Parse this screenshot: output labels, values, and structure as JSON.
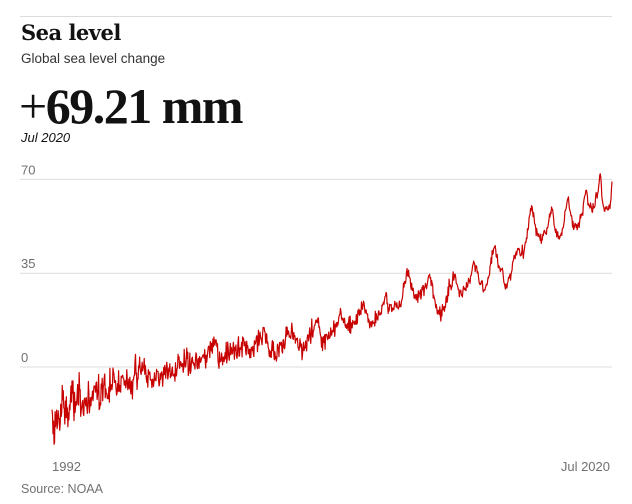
{
  "header": {
    "title": "Sea level",
    "subtitle": "Global sea level change",
    "headline_prefix": "+",
    "headline_value": "69.21 mm",
    "headline_date": "Jul 2020"
  },
  "footer": {
    "source": "Source: NOAA"
  },
  "colors": {
    "line": "#c70000",
    "grid": "#dcdcdc",
    "text": "#121212",
    "muted": "#707070"
  },
  "chart_data": {
    "type": "line",
    "x_start": 1992.85,
    "x_end": 2020.54,
    "x_step_years": 0.03,
    "x_tick_labels": [
      "1992",
      "Jul 2020"
    ],
    "y_ticks": [
      0,
      35,
      70
    ],
    "ylim": [
      -30,
      72
    ],
    "grid": "horizontal",
    "series": [
      {
        "values": [
          -15.9,
          -17.9,
          -24.9,
          -20.2,
          -28.8,
          -28.1,
          -16.7,
          -22.2,
          -19.6,
          -16.1,
          -23.0,
          -21.1,
          -16.3,
          -19.1,
          -19.2,
          -23.6,
          -21.4,
          -13.9,
          -18.5,
          -16.8,
          -6.9,
          -12.3,
          -8.8,
          -15.3,
          -15.5,
          -21.3,
          -12.7,
          -18.9,
          -11.1,
          -18.9,
          -15.3,
          -22.3,
          -17.1,
          -19.7,
          -14.2,
          -16.0,
          -11.7,
          -7.1,
          -13.1,
          -5.2,
          -9.8,
          -5.2,
          -14.8,
          -20.0,
          -9.4,
          -17.0,
          -14.8,
          -12.9,
          -14.2,
          -10.5,
          -6.5,
          -13.6,
          -14.2,
          -2.1,
          -8.5,
          -8.4,
          -18.4,
          -16.3,
          -15.1,
          -13.3,
          -12.5,
          -17.3,
          -18.1,
          -11.9,
          -11.6,
          -13.2,
          -14.5,
          -11.4,
          -14.7,
          -17.3,
          -13.9,
          -5.4,
          -10.1,
          -17.1,
          -14.4,
          -11.5,
          -14.5,
          -11.3,
          -11.9,
          -9.0,
          -12.6,
          -9.6,
          -7.1,
          -7.4,
          -7.1,
          -9.4,
          -6.0,
          -5.6,
          -12.1,
          -10.4,
          -8.5,
          -2.8,
          -15.9,
          -15.5,
          -13.4,
          -14.2,
          -6.4,
          -8.0,
          -4.2,
          -12.6,
          -7.5,
          -6.7,
          -3.9,
          -2.6,
          -11.5,
          -8.1,
          -9.7,
          -9.9,
          -11.8,
          -10.8,
          -11.8,
          -7.5,
          -13.1,
          -0.5,
          -9.0,
          -7.3,
          -6.6,
          -8.4,
          -6.7,
          -0.4,
          -1.8,
          -2.7,
          -5.8,
          -5.4,
          -5.1,
          -8.2,
          -10.5,
          -9.8,
          -6.2,
          -9.0,
          -1.4,
          -9.2,
          -6.8,
          -7.8,
          -9.4,
          -3.6,
          -3.9,
          -3.2,
          -3.1,
          -4.2,
          -4.3,
          -6.8,
          -6.3,
          -5.1,
          -7.8,
          -6.4,
          -1.0,
          -5.2,
          -8.5,
          -6.9,
          -4.5,
          -8.0,
          -3.8,
          -8.5,
          -10.1,
          -5.3,
          -6.2,
          -11.9,
          -4.7,
          -4.9,
          -3.3,
          -3.2,
          2.0,
          4.7,
          -2.7,
          -2.2,
          -8.4,
          -4.2,
          -4.5,
          0.4,
          -0.2,
          3.7,
          -0.6,
          -2.0,
          -2.8,
          -0.5,
          1.8,
          -1.5,
          -0.2,
          0.2,
          3.2,
          -2.7,
          0.6,
          -1.3,
          -4.1,
          -5.8,
          -3.3,
          -7.5,
          -1.0,
          -1.9,
          -2.7,
          -1.9,
          -4.9,
          -4.7,
          -4.9,
          -7.7,
          -4.5,
          -5.0,
          -7.3,
          -5.4,
          -2.2,
          -4.9,
          -4.5,
          -5.1,
          -0.9,
          -1.6,
          -1.6,
          -1.7,
          -5.0,
          -7.1,
          -6.4,
          -2.5,
          -4.6,
          -2.3,
          -1.8,
          -3.1,
          -7.2,
          -3.4,
          -0.2,
          -2.9,
          0.6,
          -1.5,
          -4.2,
          -0.6,
          1.8,
          -0.4,
          -4.5,
          -3.0,
          -0.4,
          -1.6,
          1.2,
          -4.0,
          -2.6,
          -3.4,
          -0.9,
          0.0,
          -3.2,
          -2.9,
          -3.4,
          -2.6,
          -5.3,
          1.6,
          -3.3,
          -3.3,
          -0.7,
          -0.2,
          4.7,
          2.8,
          3.8,
          -0.5,
          0.4,
          2.0,
          1.5,
          0.2,
          0.5,
          1.3,
          -2.0,
          -0.6,
          6.6,
          2.3,
          0.0,
          0.3,
          2.9,
          7.1,
          3.2,
          5.5,
          -3.2,
          -1.6,
          -0.5,
          5.2,
          -2.4,
          -1.7,
          1.4,
          3.2,
          3.7,
          1.4,
          1.7,
          0.6,
          1.2,
          -0.8,
          2.7,
          5.3,
          4.5,
          0.1,
          -0.6,
          2.7,
          3.2,
          -0.5,
          3.9,
          3.4,
          1.7,
          2.4,
          3.3,
          3.6,
          4.1,
          4.6,
          4.0,
          3.3,
          6.5,
          2.7,
          -0.4,
          4.4,
          1.8,
          3.8,
          5.6,
          7.4,
          7.8,
          7.2,
          3.5,
          9.5,
          9.0,
          6.0,
          8.8,
          5.1,
          10.4,
          7.6,
          11.2,
          8.9,
          8.1,
          9.9,
          10.2,
          9.1,
          7.5,
          8.7,
          2.4,
          0.8,
          -0.5,
          5.6,
          2.0,
          2.0,
          2.6,
          5.2,
          3.4,
          0.8,
          3.6,
          3.7,
          2.0,
          3.6,
          5.4,
          3.0,
          9.2,
          1.5,
          3.1,
          9.3,
          6.5,
          3.8,
          2.5,
          5.5,
          8.8,
          4.6,
          7.3,
          5.5,
          4.9,
          6.7,
          9.2,
          6.2,
          2.9,
          7.4,
          6.2,
          8.2,
          4.1,
          3.2,
          5.0,
          9.1,
          11.3,
          4.0,
          4.2,
          7.2,
          6.6,
          6.7,
          9.1,
          3.7,
          11.2,
          10.9,
          10.4,
          7.9,
          9.1,
          9.4,
          5.6,
          4.5,
          9.6,
          7.2,
          8.0,
          4.9,
          5.1,
          6.7,
          3.4,
          6.5,
          3.5,
          7.4,
          6.8,
          6.1,
          7.7,
          4.8,
          3.9,
          9.8,
          8.5,
          8.7,
          9.8,
          11.3,
          11.7,
          5.7,
          9.2,
          13.7,
          8.1,
          10.0,
          13.0,
          11.4,
          10.7,
          9.7,
          8.3,
          12.0,
          14.8,
          14.5,
          14.7,
          13.3,
          12.9,
          8.9,
          11.1,
          12.4,
          8.8,
          9.4,
          7.3,
          6.7,
          4.0,
          6.1,
          3.7,
          5.7,
          3.6,
          7.4,
          9.9,
          6.1,
          9.4,
          4.4,
          2.7,
          5.7,
          3.1,
          3.8,
          2.2,
          3.6,
          8.5,
          7.6,
          7.0,
          3.9,
          9.1,
          8.5,
          8.2,
          9.3,
          9.0,
          5.7,
          5.2,
          10.0,
          10.2,
          7.3,
          6.8,
          8.5,
          11.2,
          15.0,
          11.5,
          14.8,
          12.2,
          13.5,
          13.2,
          11.1,
          11.6,
          11.3,
          10.7,
          12.8,
          16.4,
          14.4,
          10.6,
          10.3,
          12.9,
          11.2,
          11.7,
          8.9,
          10.3,
          10.6,
          10.1,
          10.8,
          7.7,
          6.8,
          6.2,
          7.6,
          10.5,
          8.7,
          7.3,
          8.6,
          2.7,
          4.8,
          7.3,
          9.2,
          6.1,
          7.3,
          7.2,
          9.7,
          7.2,
          6.0,
          10.7,
          12.0,
          11.6,
          9.7,
          12.1,
          14.6,
          11.9,
          8.8,
          12.3,
          17.9,
          12.2,
          11.1,
          13.5,
          13.7,
          15.3,
          15.6,
          16.3,
          17.5,
          17.5,
          16.6,
          16.5,
          18.3,
          18.3,
          14.8,
          15.0,
          13.2,
          11.8,
          11.2,
          7.4,
          11.1,
          6.1,
          10.0,
          11.3,
          9.1,
          12.0,
          6.6,
          12.1,
          12.0,
          12.2,
          11.3,
          10.2,
          10.8,
          13.0,
          10.7,
          10.8,
          11.4,
          14.6,
          12.0,
          11.9,
          13.6,
          13.5,
          13.1,
          17.2,
          14.3,
          11.4,
          15.9,
          15.1,
          16.5,
          14.9,
          16.6,
          15.6,
          16.9,
          18.8,
          19.4,
          19.7,
          21.9,
          20.6,
          18.3,
          17.5,
          18.2,
          18.2,
          16.5,
          16.9,
          18.2,
          15.5,
          14.8,
          15.8,
          14.4,
          15.3,
          16.3,
          13.6,
          17.1,
          18.7,
          12.9,
          19.0,
          12.6,
          16.5,
          16.0,
          14.6,
          17.4,
          16.8,
          16.6,
          15.9,
          17.1,
          16.9,
          15.9,
          19.6,
          16.0,
          16.5,
          21.1,
          19.8,
          21.6,
          19.3,
          21.1,
          19.9,
          19.6,
          24.3,
          22.6,
          21.5,
          23.1,
          24.6,
          23.9,
          22.2,
          20.1,
          21.2,
          21.3,
          20.1,
          19.7,
          19.8,
          16.7,
          17.9,
          17.4,
          14.6,
          15.3,
          16.8,
          17.0,
          15.0,
          16.2,
          17.2,
          16.3,
          16.5,
          16.4,
          15.3,
          20.8,
          16.5,
          19.9,
          17.9,
          18.8,
          17.5,
          20.5,
          21.0,
          19.5,
          19.4,
          19.5,
          20.4,
          19.8,
          23.1,
          22.9,
          23.6,
          24.2,
          23.4,
          25.2,
          26.3,
          26.5,
          27.8,
          27.5,
          23.6,
          23.8,
          20.0,
          22.0,
          20.9,
          23.4,
          23.2,
          23.1,
          23.3,
          20.7,
          21.0,
          22.0,
          21.9,
          21.3,
          22.6,
          24.5,
          23.6,
          23.3,
          22.3,
          24.0,
          22.3,
          22.2,
          21.6,
          22.4,
          24.6,
          22.5,
          23.3,
          22.5,
          24.5,
          25.0,
          25.9,
          27.8,
          31.3,
          29.8,
          31.9,
          31.8,
          31.2,
          32.8,
          35.7,
          36.7,
          34.2,
          33.8,
          36.1,
          33.7,
          33.3,
          33.2,
          30.2,
          29.0,
          31.3,
          28.6,
          28.6,
          29.4,
          27.0,
          25.6,
          26.3,
          27.0,
          25.7,
          25.0,
          27.1,
          26.8,
          24.1,
          28.4,
          26.0,
          27.7,
          27.6,
          28.8,
          25.3,
          26.6,
          29.7,
          28.8,
          30.4,
          30.3,
          26.6,
          29.7,
          29.8,
          31.2,
          30.2,
          29.2,
          30.3,
          31.6,
          32.9,
          34.0,
          34.1,
          34.6,
          33.1,
          33.4,
          30.3,
          32.3,
          31.2,
          30.7,
          25.7,
          26.8,
          25.8,
          25.3,
          24.0,
          22.1,
          23.3,
          22.0,
          19.9,
          19.8,
          21.2,
          20.7,
          19.6,
          22.5,
          18.9,
          17.1,
          21.3,
          19.0,
          23.3,
          21.3,
          21.7,
          22.5,
          20.8,
          22.7,
          22.3,
          25.9,
          26.5,
          24.1,
          24.9,
          29.8,
          26.6,
          32.8,
          30.1,
          30.0,
          30.6,
          28.8,
          29.8,
          30.1,
          33.2,
          35.5,
          32.4,
          33.2,
          34.6,
          34.6,
          33.4,
          31.3,
          31.0,
          30.6,
          29.9,
          28.8,
          29.0,
          26.2,
          28.3,
          28.2,
          28.7,
          26.7,
          26.9,
          26.1,
          28.3,
          30.1,
          29.5,
          28.9,
          29.4,
          28.7,
          28.5,
          31.5,
          29.9,
          29.8,
          31.1,
          33.1,
          32.0,
          32.4,
          31.2,
          34.0,
          34.1,
          35.1,
          36.3,
          37.9,
          38.3,
          39.5,
          38.8,
          38.4,
          35.6,
          37.6,
          37.8,
          37.4,
          35.1,
          35.6,
          34.5,
          32.5,
          31.3,
          30.8,
          31.2,
          30.8,
          31.9,
          32.2,
          32.1,
          28.7,
          28.0,
          28.7,
          28.8,
          28.7,
          29.6,
          30.3,
          30.9,
          30.6,
          31.7,
          33.4,
          33.2,
          34.1,
          34.5,
          37.7,
          38.3,
          40.8,
          38.7,
          43.5,
          42.0,
          42.4,
          44.3,
          44.4,
          44.9,
          45.3,
          43.8,
          41.2,
          40.9,
          42.0,
          39.1,
          37.0,
          37.9,
          37.3,
          37.0,
          35.6,
          36.6,
          36.4,
          36.3,
          36.9,
          35.6,
          33.4,
          31.5,
          31.1,
          30.1,
          29.1,
          31.0,
          29.6,
          29.5,
          31.2,
          32.0,
          33.4,
          33.2,
          34.1,
          34.7,
          32.4,
          34.5,
          35.5,
          36.3,
          39.1,
          39.4,
          40.3,
          41.7,
          40.9,
          40.4,
          42.3,
          43.0,
          41.8,
          43.5,
          44.2,
          43.8,
          44.3,
          44.0,
          42.6,
          41.5,
          41.5,
          41.9,
          43.0,
          45.5,
          42.2,
          40.5,
          42.7,
          43.8,
          45.6,
          46.6,
          46.5,
          48.2,
          47.9,
          51.6,
          51.1,
          52.0,
          55.3,
          56.5,
          56.9,
          59.1,
          58.2,
          60.2,
          59.8,
          58.3,
          56.1,
          57.6,
          55.6,
          53.4,
          53.2,
          52.0,
          49.0,
          51.7,
          50.0,
          49.2,
          48.7,
          49.7,
          49.0,
          48.4,
          47.2,
          49.6,
          46.1,
          47.4,
          47.4,
          49.5,
          49.1,
          50.6,
          51.0,
          50.6,
          49.8,
          49.8,
          49.5,
          51.9,
          51.8,
          52.3,
          53.7,
          54.9,
          57.0,
          56.0,
          57.8,
          57.2,
          59.7,
          58.9,
          58.8,
          57.3,
          55.5,
          52.9,
          52.2,
          51.0,
          50.2,
          51.4,
          48.6,
          49.8,
          50.5,
          48.1,
          48.8,
          47.7,
          48.2,
          49.0,
          49.3,
          50.0,
          49.1,
          51.5,
          51.9,
          52.0,
          53.5,
          54.5,
          57.9,
          58.5,
          58.8,
          59.8,
          61.3,
          62.3,
          62.9,
          63.5,
          60.8,
          59.0,
          58.3,
          57.6,
          56.4,
          56.5,
          55.2,
          52.2,
          54.3,
          51.3,
          51.7,
          52.9,
          53.6,
          53.4,
          52.1,
          53.1,
          51.2,
          52.2,
          53.6,
          53.8,
          52.1,
          54.6,
          56.8,
          55.6,
          57.0,
          56.7,
          57.4,
          56.6,
          60.5,
          62.0,
          63.2,
          63.9,
          64.5,
          65.9,
          66.0,
          65.2,
          63.8,
          60.5,
          61.0,
          60.1,
          60.2,
          59.3,
          61.2,
          60.2,
          59.4,
          57.9,
          57.7,
          61.0,
          59.3,
          59.4,
          59.6,
          60.3,
          63.6,
          65.1,
          64.4,
          63.0,
          64.8,
          65.3,
          67.5,
          68.9,
          71.4,
          72.1,
          71.0,
          68.7,
          64.1,
          62.3,
          61.2,
          60.1,
          59.7,
          58.2,
          58.1,
          59.5,
          59.7,
          59.1,
          59.9,
          58.7,
          58.6,
          58.7,
          60.2,
          60.5,
          59.1,
          61.3,
          62.6,
          66.6,
          69.2
        ]
      }
    ]
  }
}
